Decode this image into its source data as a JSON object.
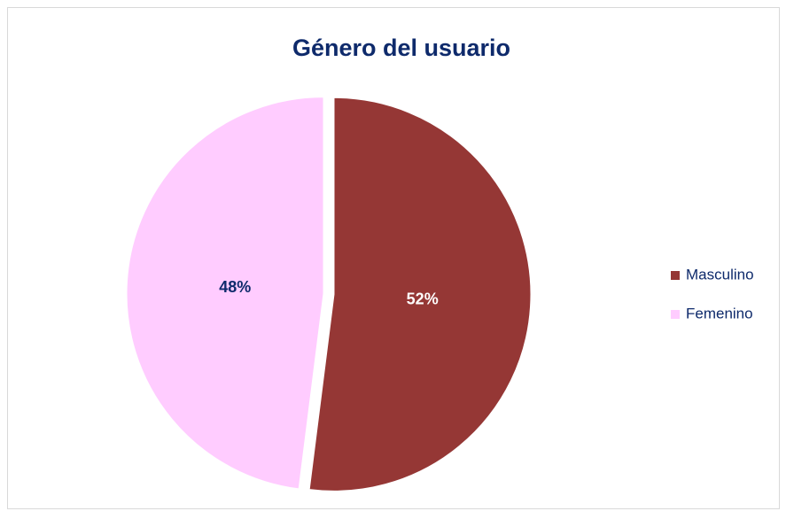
{
  "chart_data": {
    "type": "pie",
    "title": "Género del usuario",
    "categories": [
      "Masculino",
      "Femenino"
    ],
    "values": [
      52,
      48
    ],
    "value_labels": [
      "52%",
      "48%"
    ],
    "colors": [
      "#953735",
      "#ffccff"
    ],
    "label_colors": [
      "#ffffff",
      "#0e2a6b"
    ],
    "legend": "right"
  }
}
